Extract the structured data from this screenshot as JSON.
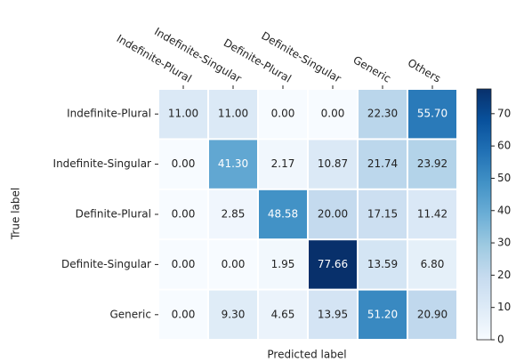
{
  "chart_data": {
    "type": "heatmap",
    "rows": [
      "Indefinite-Plural",
      "Indefinite-Singular",
      "Definite-Plural",
      "Definite-Singular",
      "Generic"
    ],
    "columns": [
      "Indefinite-Plural",
      "Indefinite-Singular",
      "Definite-Plural",
      "Definite-Singular",
      "Generic",
      "Others"
    ],
    "values": [
      [
        11,
        11,
        0,
        0,
        22.3,
        55.7
      ],
      [
        0,
        41.3,
        2.17,
        10.87,
        21.74,
        23.92
      ],
      [
        0,
        2.85,
        48.58,
        20,
        17.15,
        11.42
      ],
      [
        0,
        0,
        1.95,
        77.66,
        13.59,
        6.8
      ],
      [
        0,
        9.3,
        4.65,
        13.95,
        51.2,
        20.9
      ]
    ],
    "value_labels": [
      [
        "11.00",
        "11.00",
        "0.00",
        "0.00",
        "22.30",
        "55.70"
      ],
      [
        "0.00",
        "41.30",
        "2.17",
        "10.87",
        "21.74",
        "23.92"
      ],
      [
        "0.00",
        "2.85",
        "48.58",
        "20.00",
        "17.15",
        "11.42"
      ],
      [
        "0.00",
        "0.00",
        "1.95",
        "77.66",
        "13.59",
        "6.80"
      ],
      [
        "0.00",
        "9.30",
        "4.65",
        "13.95",
        "51.20",
        "20.90"
      ]
    ],
    "x_label": "Predicted label",
    "y_label": "True label",
    "colormap": "Blues",
    "zlim": [
      0,
      77.66
    ],
    "zticks": [
      0,
      10,
      20,
      30,
      40,
      50,
      60,
      70
    ]
  }
}
